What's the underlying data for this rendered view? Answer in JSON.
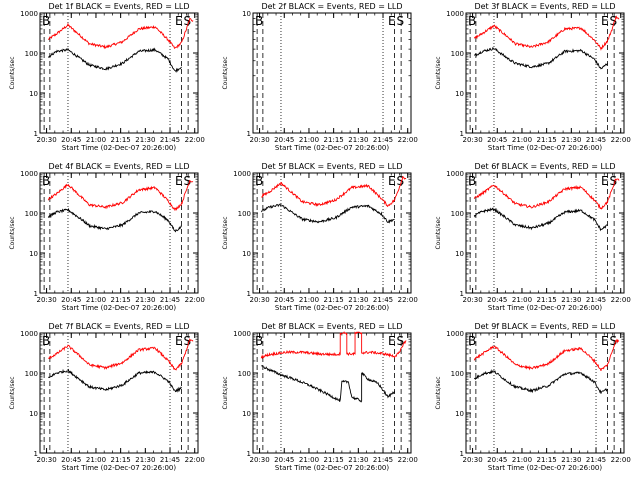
{
  "chart_data": [
    {
      "type": "line",
      "title": "Det 1f BLACK = Events, RED = LLD",
      "xlabel": "Start Time (02-Dec-07 20:26:00)",
      "ylabel": "Counts/sec",
      "x_ticks": [
        "20:30",
        "20:45",
        "21:00",
        "21:15",
        "21:30",
        "21:45",
        "22:00"
      ],
      "y_ticks": [
        "1",
        "10",
        "100",
        "1000"
      ],
      "y_scale": "log",
      "ylim": [
        1,
        1000
      ],
      "marker_text": [
        "B",
        "E",
        "S"
      ],
      "series": [
        {
          "color": "#ff0000",
          "x": [
            5,
            10,
            17,
            25,
            30,
            40,
            50,
            60,
            70,
            78,
            82,
            86,
            89,
            91,
            93
          ],
          "values": [
            220,
            300,
            500,
            260,
            170,
            140,
            190,
            400,
            450,
            210,
            130,
            180,
            400,
            700,
            650
          ]
        },
        {
          "color": "#000000",
          "x": [
            5,
            10,
            17,
            25,
            30,
            40,
            50,
            60,
            70,
            78,
            82,
            86
          ],
          "values": [
            80,
            110,
            120,
            70,
            50,
            40,
            55,
            110,
            120,
            70,
            35,
            45
          ]
        }
      ]
    },
    {
      "type": "line",
      "title": "Det 2f BLACK = Events, RED = LLD",
      "xlabel": "Start Time (02-Dec-07 20:26:00)",
      "ylabel": "Counts/sec",
      "x_ticks": [
        "20:30",
        "20:45",
        "21:00",
        "21:15",
        "21:30",
        "21:45",
        "22:00"
      ],
      "y_ticks": [
        "1",
        "10"
      ],
      "y_scale": "log",
      "ylim": [
        1,
        10
      ],
      "marker_text": [
        "B",
        "E",
        "S"
      ],
      "series": []
    },
    {
      "type": "line",
      "title": "Det 3f BLACK = Events, RED = LLD",
      "xlabel": "Start Time (02-Dec-07 20:26:00)",
      "ylabel": "Counts/sec",
      "x_ticks": [
        "20:30",
        "20:45",
        "21:00",
        "21:15",
        "21:30",
        "21:45",
        "22:00"
      ],
      "y_ticks": [
        "1",
        "10",
        "100",
        "1000"
      ],
      "y_scale": "log",
      "ylim": [
        1,
        1000
      ],
      "marker_text": [
        "B",
        "E",
        "S"
      ],
      "series": [
        {
          "color": "#ff0000",
          "x": [
            5,
            10,
            17,
            25,
            30,
            40,
            50,
            60,
            70,
            78,
            82,
            86,
            89,
            91,
            93
          ],
          "values": [
            230,
            310,
            480,
            260,
            170,
            140,
            190,
            400,
            420,
            210,
            130,
            200,
            420,
            800,
            700
          ]
        },
        {
          "color": "#000000",
          "x": [
            5,
            10,
            17,
            25,
            30,
            40,
            50,
            60,
            70,
            78,
            82,
            86
          ],
          "values": [
            85,
            110,
            130,
            75,
            55,
            45,
            55,
            110,
            115,
            70,
            40,
            55
          ]
        }
      ]
    },
    {
      "type": "line",
      "title": "Det 4f BLACK = Events, RED = LLD",
      "xlabel": "Start Time (02-Dec-07 20:26:00)",
      "ylabel": "Counts/sec",
      "x_ticks": [
        "20:30",
        "20:45",
        "21:00",
        "21:15",
        "21:30",
        "21:45",
        "22:00"
      ],
      "y_ticks": [
        "1",
        "10",
        "100",
        "1000"
      ],
      "y_scale": "log",
      "ylim": [
        1,
        1000
      ],
      "marker_text": [
        "B",
        "E",
        "S"
      ],
      "series": [
        {
          "color": "#ff0000",
          "x": [
            5,
            10,
            17,
            25,
            30,
            40,
            50,
            60,
            70,
            78,
            82,
            86,
            89,
            91,
            93
          ],
          "values": [
            220,
            300,
            520,
            250,
            160,
            140,
            180,
            380,
            430,
            200,
            120,
            170,
            380,
            650,
            600
          ]
        },
        {
          "color": "#000000",
          "x": [
            5,
            10,
            17,
            25,
            30,
            40,
            50,
            60,
            70,
            78,
            82,
            86
          ],
          "values": [
            80,
            105,
            120,
            70,
            48,
            40,
            50,
            100,
            110,
            65,
            35,
            45
          ]
        }
      ]
    },
    {
      "type": "line",
      "title": "Det 5f BLACK = Events, RED = LLD",
      "xlabel": "Start Time (02-Dec-07 20:26:00)",
      "ylabel": "Counts/sec",
      "x_ticks": [
        "20:30",
        "20:45",
        "21:00",
        "21:15",
        "21:30",
        "21:45",
        "22:00"
      ],
      "y_ticks": [
        "1",
        "10",
        "100",
        "1000"
      ],
      "y_scale": "log",
      "ylim": [
        1,
        1000
      ],
      "marker_text": [
        "B",
        "E",
        "S"
      ],
      "series": [
        {
          "color": "#ff0000",
          "x": [
            5,
            10,
            17,
            25,
            30,
            40,
            50,
            60,
            70,
            78,
            82,
            86,
            89,
            91,
            93
          ],
          "values": [
            260,
            340,
            560,
            290,
            190,
            160,
            210,
            430,
            480,
            230,
            150,
            210,
            450,
            800,
            720
          ]
        },
        {
          "color": "#000000",
          "x": [
            5,
            10,
            17,
            25,
            30,
            40,
            50,
            60,
            70,
            78,
            82,
            86
          ],
          "values": [
            110,
            140,
            160,
            95,
            70,
            60,
            75,
            140,
            150,
            95,
            60,
            70
          ]
        }
      ]
    },
    {
      "type": "line",
      "title": "Det 6f BLACK = Events, RED = LLD",
      "xlabel": "Start Time (02-Dec-07 20:26:00)",
      "ylabel": "Counts/sec",
      "x_ticks": [
        "20:30",
        "20:45",
        "21:00",
        "21:15",
        "21:30",
        "21:45",
        "22:00"
      ],
      "y_ticks": [
        "1",
        "10",
        "100",
        "1000"
      ],
      "y_scale": "log",
      "ylim": [
        1,
        1000
      ],
      "marker_text": [
        "B",
        "E",
        "S"
      ],
      "series": [
        {
          "color": "#ff0000",
          "x": [
            5,
            10,
            17,
            25,
            30,
            40,
            50,
            60,
            70,
            78,
            82,
            86,
            89,
            91,
            93
          ],
          "values": [
            230,
            310,
            500,
            260,
            170,
            140,
            190,
            400,
            440,
            210,
            130,
            190,
            410,
            720,
            650
          ]
        },
        {
          "color": "#000000",
          "x": [
            5,
            10,
            17,
            25,
            30,
            40,
            50,
            60,
            70,
            78,
            82,
            86
          ],
          "values": [
            85,
            110,
            125,
            72,
            50,
            42,
            55,
            105,
            115,
            68,
            38,
            50
          ]
        }
      ]
    },
    {
      "type": "line",
      "title": "Det 7f BLACK = Events, RED = LLD",
      "xlabel": "Start Time (02-Dec-07 20:26:00)",
      "ylabel": "Counts/sec",
      "x_ticks": [
        "20:30",
        "20:45",
        "21:00",
        "21:15",
        "21:30",
        "21:45",
        "22:00"
      ],
      "y_ticks": [
        "1",
        "10",
        "100",
        "1000"
      ],
      "y_scale": "log",
      "ylim": [
        1,
        1000
      ],
      "marker_text": [
        "B",
        "E",
        "S"
      ],
      "series": [
        {
          "color": "#ff0000",
          "x": [
            5,
            10,
            17,
            25,
            30,
            40,
            50,
            60,
            70,
            78,
            82,
            86,
            89,
            91,
            93
          ],
          "values": [
            230,
            300,
            480,
            250,
            160,
            135,
            180,
            380,
            420,
            200,
            120,
            170,
            380,
            680,
            620
          ]
        },
        {
          "color": "#000000",
          "x": [
            5,
            10,
            17,
            25,
            30,
            40,
            50,
            60,
            70,
            78,
            82,
            86
          ],
          "values": [
            75,
            100,
            115,
            65,
            45,
            38,
            50,
            100,
            105,
            62,
            35,
            42
          ]
        }
      ]
    },
    {
      "type": "line",
      "title": "Det 8f BLACK = Events, RED = LLD",
      "xlabel": "Start Time (02-Dec-07 20:26:00)",
      "ylabel": "Counts/sec",
      "x_ticks": [
        "20:30",
        "20:45",
        "21:00",
        "21:15",
        "21:30",
        "21:45",
        "22:00"
      ],
      "y_ticks": [
        "1",
        "10",
        "100",
        "1000"
      ],
      "y_scale": "log",
      "ylim": [
        1,
        1000
      ],
      "marker_text": [
        "B",
        "E",
        "S"
      ],
      "series": [
        {
          "color": "#ff0000",
          "x": [
            5,
            10,
            20,
            30,
            40,
            50,
            53,
            53,
            57,
            57,
            62,
            62,
            66,
            66,
            72,
            80,
            86,
            89,
            91,
            93
          ],
          "values": [
            250,
            290,
            330,
            330,
            300,
            290,
            300,
            1000,
            1000,
            300,
            300,
            1000,
            1000,
            320,
            330,
            300,
            260,
            320,
            500,
            650
          ]
        },
        {
          "color": "#000000",
          "x": [
            5,
            10,
            17,
            25,
            35,
            45,
            53,
            54,
            58,
            60,
            66,
            66,
            70,
            76,
            82,
            86
          ],
          "values": [
            150,
            120,
            90,
            70,
            48,
            30,
            20,
            60,
            60,
            25,
            20,
            100,
            70,
            55,
            25,
            35
          ]
        }
      ]
    },
    {
      "type": "line",
      "title": "Det 9f BLACK = Events, RED = LLD",
      "xlabel": "Start Time (02-Dec-07 20:26:00)",
      "ylabel": "Counts/sec",
      "x_ticks": [
        "20:30",
        "20:45",
        "21:00",
        "21:15",
        "21:30",
        "21:45",
        "22:00"
      ],
      "y_ticks": [
        "1",
        "10",
        "100",
        "1000"
      ],
      "y_scale": "log",
      "ylim": [
        1,
        1000
      ],
      "marker_text": [
        "B",
        "E",
        "S"
      ],
      "series": [
        {
          "color": "#ff0000",
          "x": [
            5,
            10,
            17,
            25,
            30,
            40,
            50,
            60,
            70,
            78,
            82,
            86,
            89,
            91,
            93
          ],
          "values": [
            220,
            300,
            470,
            250,
            160,
            130,
            170,
            360,
            410,
            200,
            120,
            160,
            360,
            650,
            620
          ]
        },
        {
          "color": "#000000",
          "x": [
            5,
            10,
            17,
            25,
            30,
            40,
            50,
            60,
            70,
            78,
            82,
            86
          ],
          "values": [
            70,
            95,
            110,
            62,
            45,
            36,
            48,
            95,
            100,
            60,
            32,
            40
          ]
        }
      ]
    }
  ]
}
